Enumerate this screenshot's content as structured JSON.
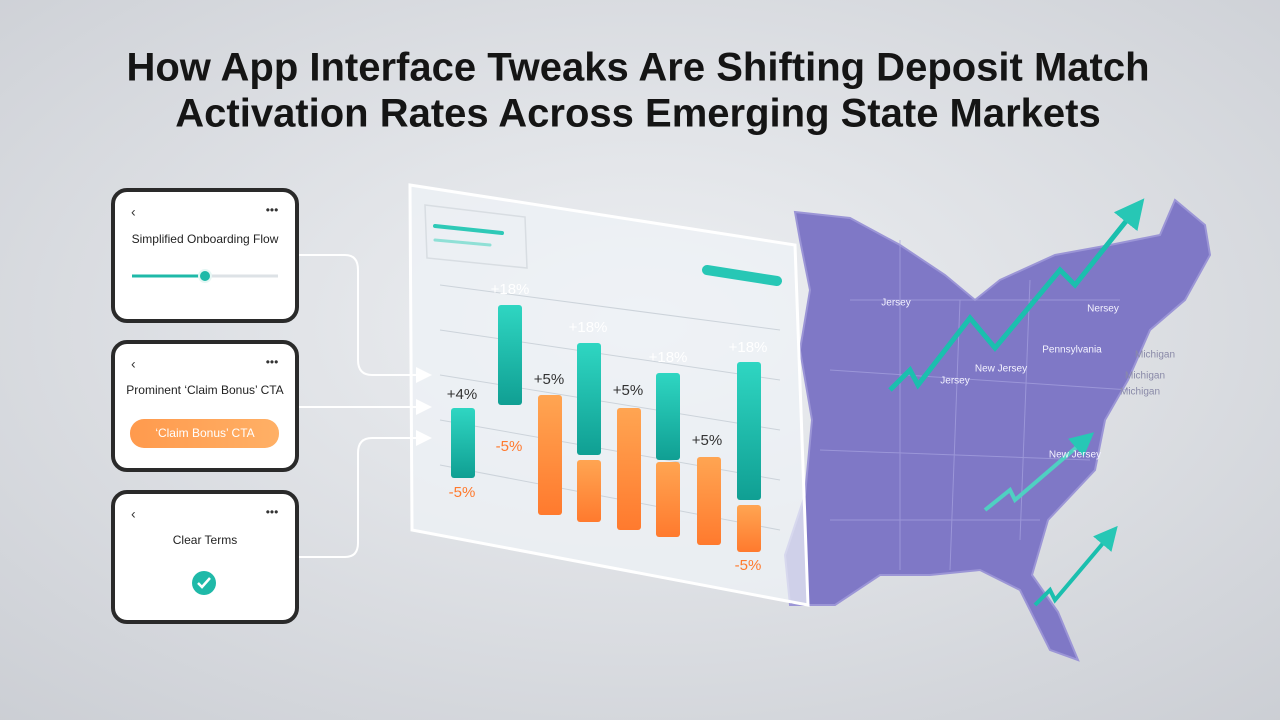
{
  "header": {
    "title_lines": [
      "How App Interface Tweaks Are Shifting Deposit Match",
      "Activation Rates Across Emerging State Markets"
    ]
  },
  "cards": [
    {
      "title": "Simplified Onboarding Flow"
    },
    {
      "title": "Prominent ‘Claim Bonus’ CTA",
      "button": "‘Claim Bonus’ CTA"
    },
    {
      "title": "Clear Terms"
    }
  ],
  "chart": {
    "labels": [
      "+4%",
      "-5%",
      "+18%",
      "-5%",
      "+5%",
      "+18%",
      "+5%",
      "+18%",
      "+5%",
      "+18%",
      "-5%"
    ]
  },
  "map": {
    "labels": [
      "Jersey",
      "Jersey",
      "New Jersey",
      "Nersey",
      "Pennsylvania",
      "Michigan",
      "Michigan",
      "Michigan",
      "New Jersey"
    ]
  }
}
